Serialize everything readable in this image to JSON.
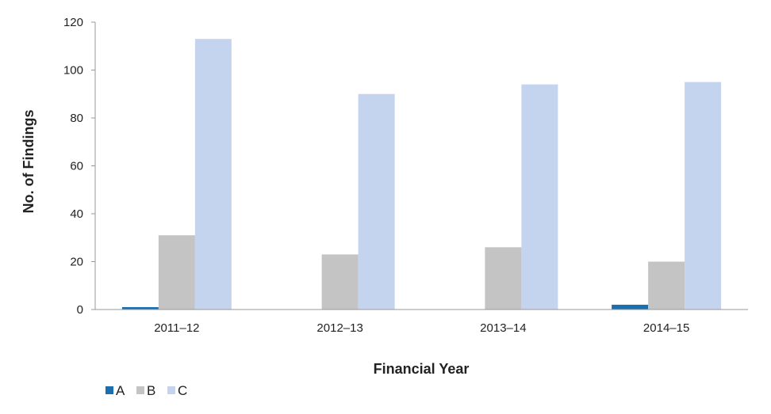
{
  "chart_data": {
    "type": "bar",
    "title": "",
    "xlabel": "Financial Year",
    "ylabel": "No. of Findings",
    "categories": [
      "2011–12",
      "2012–13",
      "2013–14",
      "2014–15"
    ],
    "ylim": [
      0,
      120
    ],
    "yticks": [
      0,
      20,
      40,
      60,
      80,
      100,
      120
    ],
    "grid": false,
    "legend_position": "bottom-left",
    "series": [
      {
        "name": "A",
        "color": "#1a6fb0",
        "values": [
          1,
          0,
          0,
          2
        ]
      },
      {
        "name": "B",
        "color": "#c4c4c4",
        "values": [
          31,
          23,
          26,
          20
        ]
      },
      {
        "name": "C",
        "color": "#c5d4ee",
        "values": [
          113,
          90,
          94,
          95
        ]
      }
    ]
  }
}
